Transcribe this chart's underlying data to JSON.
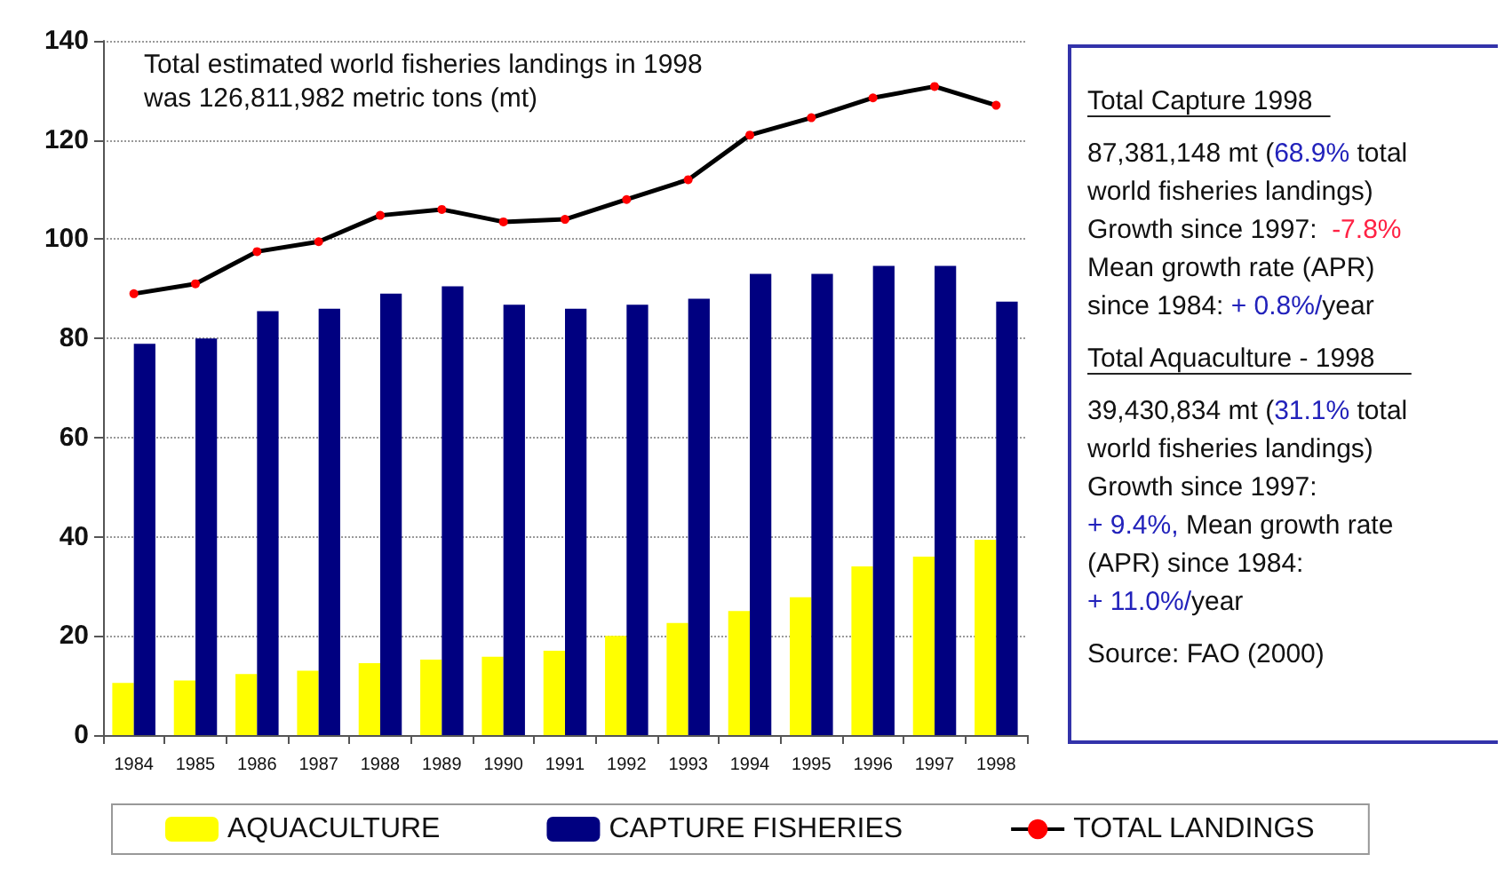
{
  "chart_data": {
    "type": "bar",
    "title": "Total estimated world fisheries landings in 1998\nwas 126,811,982 metric tons (mt)",
    "categories": [
      "1984",
      "1985",
      "1986",
      "1987",
      "1988",
      "1989",
      "1990",
      "1991",
      "1992",
      "1993",
      "1994",
      "1995",
      "1996",
      "1997",
      "1998"
    ],
    "series": [
      {
        "name": "AQUACULTURE",
        "color": "#ffff00",
        "values": [
          10.5,
          11,
          12.3,
          13,
          14.5,
          15.2,
          15.8,
          17,
          20,
          22.6,
          25,
          27.8,
          34,
          36,
          39.4
        ]
      },
      {
        "name": "CAPTURE FISHERIES",
        "color": "#000080",
        "values": [
          78.9,
          80,
          85.5,
          86,
          89,
          90.5,
          86.8,
          86,
          86.8,
          88,
          93,
          93,
          94.6,
          94.6,
          87.4
        ]
      },
      {
        "name": "TOTAL LANDINGS",
        "type": "line",
        "color": "#000000",
        "colors": [
          "#ff0000",
          "#ff0000",
          "#ff0000",
          "#ff0000",
          "#ff0000",
          "#ff0000",
          "#ff0000",
          "#ff0000",
          "#ff0000",
          "#ff0000",
          "#ff0000",
          "#ff0000",
          "#ff0000",
          "#ff0000",
          "#ff0000"
        ],
        "marker": "circle",
        "values": [
          89,
          91,
          97.5,
          99.5,
          104.8,
          106,
          103.5,
          104,
          108,
          112,
          121,
          124.5,
          128.5,
          130.8,
          127
        ]
      }
    ],
    "ylim": [
      0,
      140
    ],
    "yticks": [
      0,
      20,
      40,
      60,
      80,
      100,
      120,
      140
    ],
    "grid": "y",
    "legend": "bottom",
    "annotations": [
      "Total Capture 1998",
      "87,381,148 mt (68.9% total\nworld fisheries landings)\nGrowth since 1997:  -7.8%\nMean growth rate (APR)\nsince 1984: + 0.8%/year",
      "Total Aquaculture - 1998",
      "39,430,834 mt (31.1% total\nworld fisheries landings)\nGrowth since 1997:\n+ 9.4%, Mean growth rate\n(APR) since 1984:\n+ 11.0%/year",
      "Source: FAO (2000)"
    ]
  }
}
